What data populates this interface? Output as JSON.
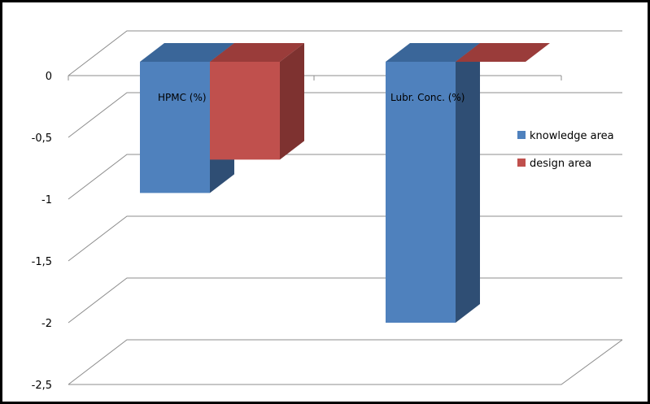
{
  "chart_data": {
    "type": "bar",
    "title": "",
    "xlabel": "",
    "ylabel": "",
    "categories": [
      "HPMC (%)",
      "Lubr. Conc. (%)"
    ],
    "series": [
      {
        "name": "knowledge area",
        "values": [
          -0.95,
          -2.0
        ]
      },
      {
        "name": "design area",
        "values": [
          -0.68,
          0.0
        ]
      }
    ],
    "yticks": [
      "0",
      "-0,5",
      "-1",
      "-1,5",
      "-2",
      "-2,5"
    ],
    "ylim": [
      -2.5,
      0
    ],
    "grid": true,
    "legend": "right",
    "colors": {
      "knowledge": {
        "front": "#4f81bd",
        "side": "#2f4e74",
        "top": "#3a6699"
      },
      "design": {
        "front": "#c0504d",
        "side": "#7e3230",
        "top": "#9a3c3a"
      }
    }
  }
}
